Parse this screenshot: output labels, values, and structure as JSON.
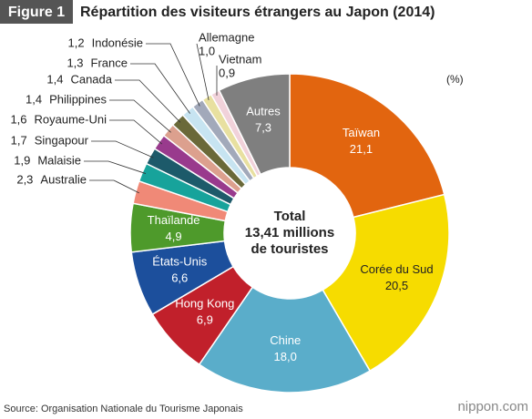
{
  "header": {
    "figure": "Figure 1"
  },
  "chart_data": {
    "type": "donut",
    "title": "Répartition des visiteurs étrangers au Japon (2014)",
    "unit_label": "(%)",
    "center_label": [
      "Total",
      "13,41 millions",
      "de touristes"
    ],
    "categories": [
      "Taïwan",
      "Corée du Sud",
      "Chine",
      "Hong Kong",
      "États-Unis",
      "Thaïlande",
      "Australie",
      "Malaisie",
      "Singapour",
      "Royaume-Uni",
      "Philippines",
      "Canada",
      "France",
      "Indonésie",
      "Allemagne",
      "Vietnam",
      "Autres"
    ],
    "values": [
      21.1,
      20.5,
      18.0,
      6.9,
      6.6,
      4.9,
      2.3,
      1.9,
      1.7,
      1.6,
      1.4,
      1.4,
      1.3,
      1.2,
      1.0,
      0.9,
      7.3
    ],
    "value_labels": [
      "21,1",
      "20,5",
      "18,0",
      "6,9",
      "6,6",
      "4,9",
      "2,3",
      "1,9",
      "1,7",
      "1,6",
      "1,4",
      "1,4",
      "1,3",
      "1,2",
      "1,0",
      "0,9",
      "7,3"
    ],
    "colors": [
      "#e2650f",
      "#f6dc00",
      "#5aadca",
      "#c1202b",
      "#1c4f9c",
      "#4e9a2b",
      "#f08977",
      "#17a39b",
      "#1d5a6a",
      "#993a8d",
      "#dca08e",
      "#6a6939",
      "#c7e4f1",
      "#a2a9ba",
      "#e8e0a0",
      "#f1d2da",
      "#7f7f7f"
    ]
  },
  "footer": {
    "source": "Source: Organisation Nationale du Tourisme Japonais",
    "logo": "nippon.com"
  }
}
